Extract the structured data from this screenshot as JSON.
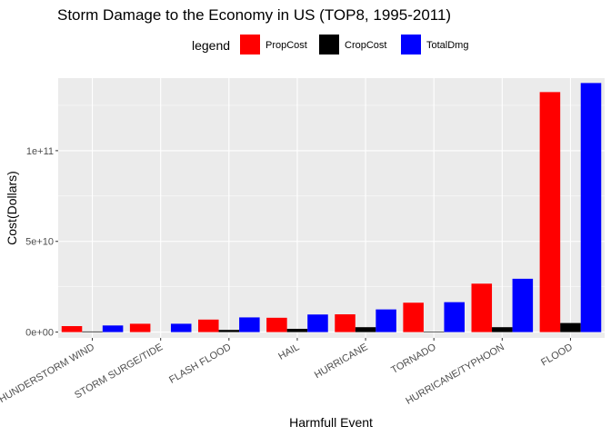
{
  "chart_data": {
    "type": "bar",
    "title": "Storm Damage to the Economy in US (TOP8, 1995-2011)",
    "xlabel": "Harmfull Event",
    "ylabel": "Cost(Dollars)",
    "legend_title": "legend",
    "legend_position": "top",
    "grid": true,
    "ylim": [
      -3200000000.0,
      140000000000.0
    ],
    "yticks": [
      {
        "value": 0,
        "label": "0e+00"
      },
      {
        "value": 50000000000.0,
        "label": "5e+10"
      },
      {
        "value": 100000000000.0,
        "label": "1e+11"
      }
    ],
    "categories": [
      "THUNDERSTORM WIND",
      "STORM SURGE/TIDE",
      "FLASH FLOOD",
      "HAIL",
      "HURRICANE",
      "TORNADO",
      "HURRICANE/TYPHOON",
      "FLOOD"
    ],
    "series": [
      {
        "name": "PropCost",
        "color": "#ff0000",
        "values": [
          3300000000.0,
          4600000000.0,
          6900000000.0,
          7900000000.0,
          9800000000.0,
          16200000000.0,
          26700000000.0,
          132300000000.0
        ]
      },
      {
        "name": "CropCost",
        "color": "#000000",
        "values": [
          350000000.0,
          0.0,
          1200000000.0,
          1800000000.0,
          2700000000.0,
          300000000.0,
          2700000000.0,
          5000000000.0
        ]
      },
      {
        "name": "TotalDmg",
        "color": "#0000ff",
        "values": [
          3650000000.0,
          4600000000.0,
          8100000000.0,
          9700000000.0,
          12500000000.0,
          16500000000.0,
          29400000000.0,
          137300000000.0
        ]
      }
    ]
  }
}
